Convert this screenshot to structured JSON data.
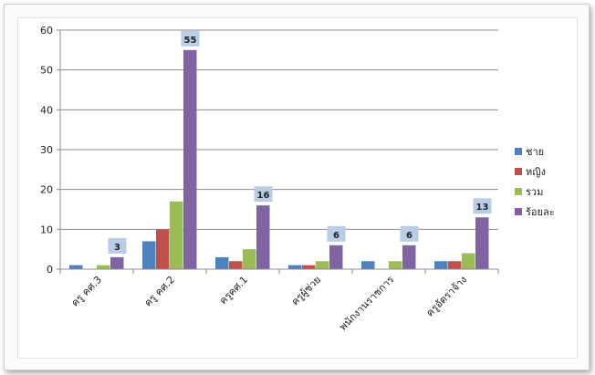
{
  "chart_data": {
    "type": "bar",
    "title": "",
    "xlabel": "",
    "ylabel": "",
    "ylim": [
      0,
      60
    ],
    "yticks": [
      0,
      10,
      20,
      30,
      40,
      50,
      60
    ],
    "grid": true,
    "legend_position": "right",
    "categories": [
      "ครู คศ.3",
      "ครู คศ.2",
      "ครูคศ.1",
      "ครูผู้ช่วย",
      "พนักงานราชการ",
      "ครูอัตราจ้าง"
    ],
    "series": [
      {
        "name": "ชาย",
        "color": "#4f81bd",
        "values": [
          1,
          7,
          3,
          1,
          2,
          2
        ]
      },
      {
        "name": "หญิง",
        "color": "#c0504d",
        "values": [
          0,
          10,
          2,
          1,
          0,
          2
        ]
      },
      {
        "name": "รวม",
        "color": "#9bbb59",
        "values": [
          1,
          17,
          5,
          2,
          2,
          4
        ]
      },
      {
        "name": "ร้อยละ",
        "color": "#8064a2",
        "values": [
          3,
          55,
          16,
          6,
          6,
          13
        ]
      }
    ],
    "data_labels": {
      "series": "ร้อยละ",
      "values": [
        "3",
        "55",
        "16",
        "6",
        "6",
        "13"
      ]
    }
  }
}
